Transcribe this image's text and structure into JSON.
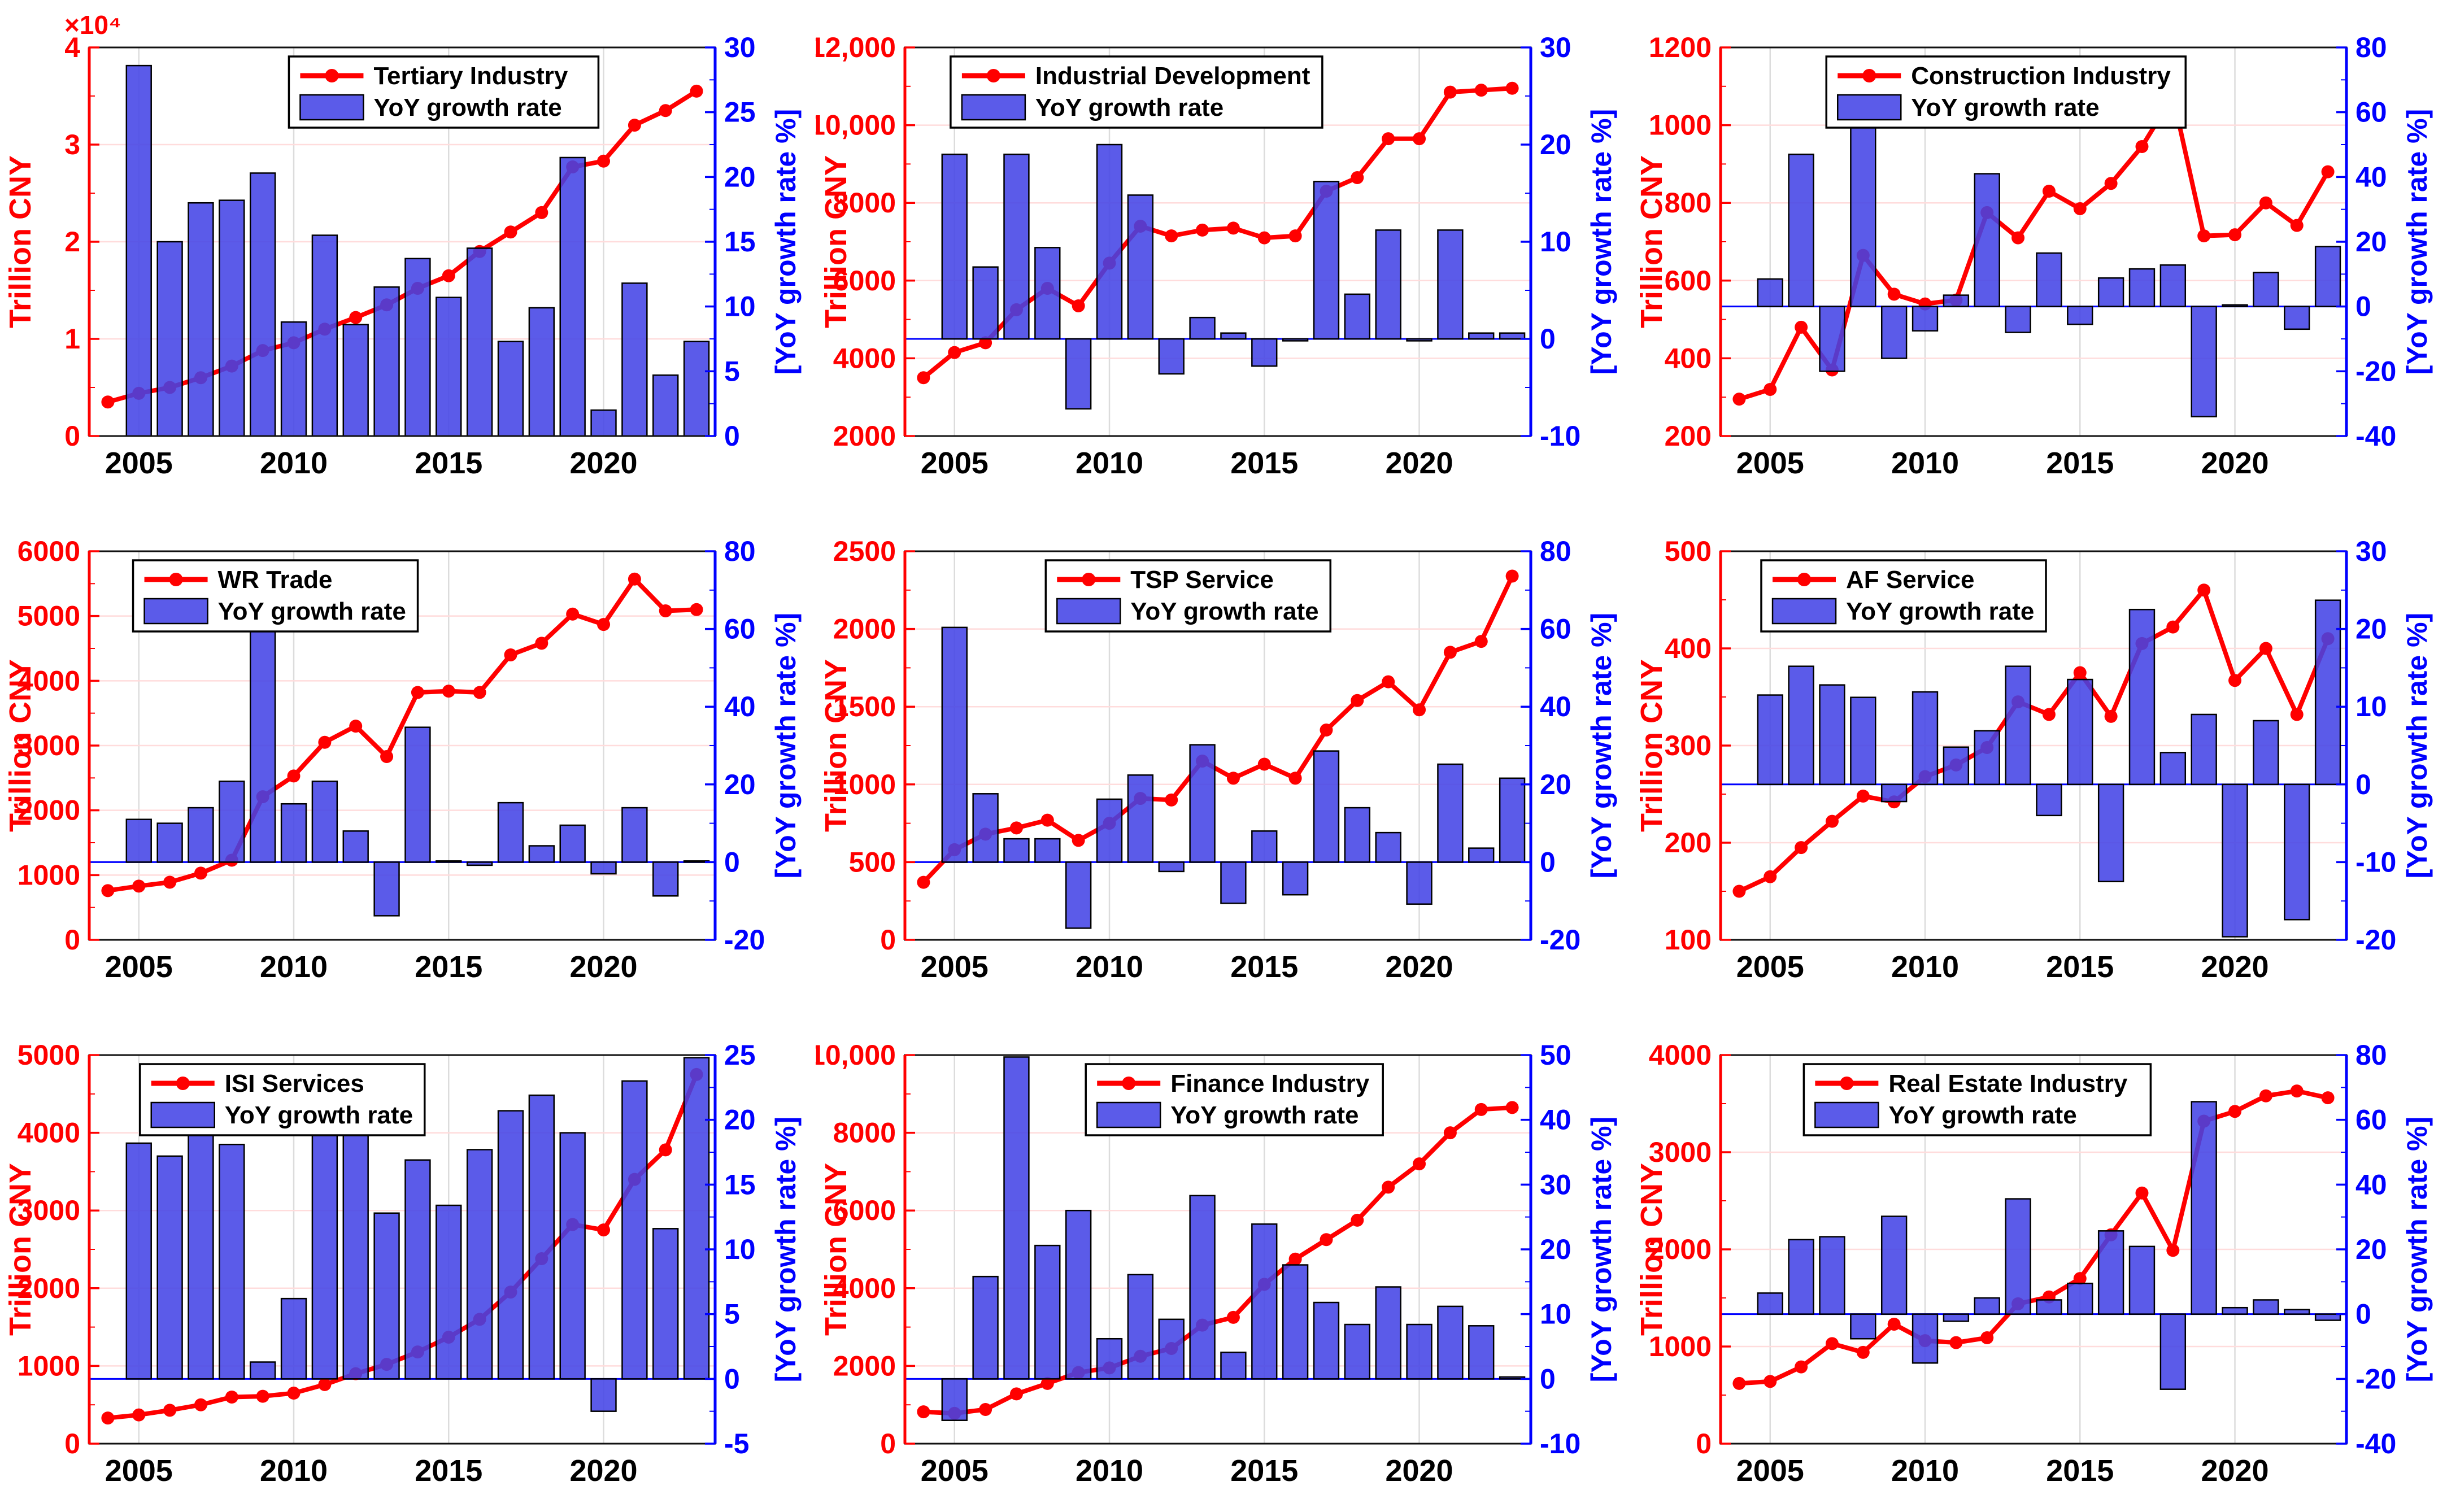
{
  "shared": {
    "left_axis_label": "Trillion CNY",
    "right_axis_label": "[YoY growth rate %]",
    "bar_label": "YoY growth rate",
    "x_ticks": [
      2005,
      2010,
      2015,
      2020
    ],
    "years_start": 2004,
    "years_end": 2023,
    "colors": {
      "line": "#ff0000",
      "marker": "#ff0000",
      "bar_fill": "#4343e6",
      "bar_edge": "#000000",
      "left_axis": "#ff0000",
      "right_axis": "#0000ff",
      "frame": "#111111",
      "grid_h": "#ffdcdc",
      "grid_v": "#dcdcdc",
      "x_label": "#000000",
      "legend_border": "#000000",
      "legend_bg": "#ffffff",
      "legend_text": "#000000"
    }
  },
  "chart_data": [
    {
      "type": "line+bar",
      "series_name": "Tertiary Industry",
      "bar_name": "YoY growth rate",
      "left_unit_multiplier": "×10⁴",
      "years": [
        2004,
        2005,
        2006,
        2007,
        2008,
        2009,
        2010,
        2011,
        2012,
        2013,
        2014,
        2015,
        2016,
        2017,
        2018,
        2019,
        2020,
        2021,
        2022,
        2023
      ],
      "line_trillion_cny": [
        0.35,
        0.44,
        0.5,
        0.6,
        0.72,
        0.88,
        0.96,
        1.1,
        1.22,
        1.35,
        1.52,
        1.65,
        1.9,
        2.1,
        2.3,
        2.77,
        2.83,
        3.2,
        3.35,
        3.55
      ],
      "bar_yoy_percent": [
        null,
        28.6,
        15.0,
        18.0,
        18.2,
        20.3,
        8.8,
        15.5,
        8.6,
        11.5,
        13.7,
        10.7,
        14.5,
        7.3,
        9.9,
        21.5,
        2.0,
        11.8,
        4.7,
        7.3
      ],
      "left_range": [
        0,
        4
      ],
      "left_ticks": [
        0,
        1,
        2,
        3,
        4
      ],
      "right_range": [
        0,
        30
      ],
      "right_ticks": [
        0,
        5,
        10,
        15,
        20,
        25,
        30
      ],
      "legend_x_frac": 0.319
    },
    {
      "type": "line+bar",
      "series_name": "Industrial Development",
      "bar_name": "YoY growth rate",
      "years": [
        2004,
        2005,
        2006,
        2007,
        2008,
        2009,
        2010,
        2011,
        2012,
        2013,
        2014,
        2015,
        2016,
        2017,
        2018,
        2019,
        2020,
        2021,
        2022,
        2023
      ],
      "line_trillion_cny": [
        3500,
        4150,
        4400,
        5250,
        5800,
        5350,
        6450,
        7400,
        7150,
        7300,
        7350,
        7100,
        7150,
        8300,
        8650,
        9650,
        9650,
        10850,
        10900,
        10950
      ],
      "bar_yoy_percent": [
        null,
        19.0,
        7.4,
        19.0,
        9.4,
        -7.2,
        20.0,
        14.8,
        -3.6,
        2.2,
        0.6,
        -2.8,
        -0.2,
        16.2,
        4.6,
        11.2,
        -0.2,
        11.2,
        0.6,
        0.6
      ],
      "left_range": [
        2000,
        12000
      ],
      "left_ticks": [
        2000,
        4000,
        6000,
        8000,
        10000,
        12000
      ],
      "right_range": [
        -10,
        30
      ],
      "right_ticks": [
        -10,
        0,
        10,
        20,
        30
      ],
      "legend_x_frac": 0.073
    },
    {
      "type": "line+bar",
      "series_name": "Construction Industry",
      "bar_name": "YoY growth rate",
      "years": [
        2004,
        2005,
        2006,
        2007,
        2008,
        2009,
        2010,
        2011,
        2012,
        2013,
        2014,
        2015,
        2016,
        2017,
        2018,
        2019,
        2020,
        2021,
        2022,
        2023
      ],
      "line_trillion_cny": [
        295,
        320,
        480,
        370,
        665,
        565,
        540,
        550,
        775,
        710,
        830,
        785,
        850,
        945,
        1075,
        715,
        718,
        800,
        742,
        880
      ],
      "bar_yoy_percent": [
        null,
        8.5,
        47,
        -20,
        60,
        -16,
        -7.5,
        3.5,
        41,
        -8,
        16.5,
        -5.5,
        8.8,
        11.6,
        12.8,
        -34,
        0.5,
        10.5,
        -7,
        18.5
      ],
      "left_range": [
        200,
        1200
      ],
      "left_ticks": [
        200,
        400,
        600,
        800,
        1000,
        1200
      ],
      "right_range": [
        -40,
        80
      ],
      "right_ticks": [
        -40,
        -20,
        0,
        20,
        40,
        60,
        80
      ],
      "legend_x_frac": 0.169
    },
    {
      "type": "line+bar",
      "series_name": "WR Trade",
      "bar_name": "YoY growth rate",
      "years": [
        2004,
        2005,
        2006,
        2007,
        2008,
        2009,
        2010,
        2011,
        2012,
        2013,
        2014,
        2015,
        2016,
        2017,
        2018,
        2019,
        2020,
        2021,
        2022,
        2023
      ],
      "line_trillion_cny": [
        760,
        830,
        890,
        1030,
        1230,
        2210,
        2530,
        3050,
        3300,
        2830,
        3820,
        3840,
        3820,
        4400,
        4580,
        5030,
        4870,
        5570,
        5080,
        5100
      ],
      "bar_yoy_percent": [
        null,
        11,
        10,
        14,
        20.8,
        62,
        15,
        20.8,
        8,
        -13.8,
        34.7,
        0.3,
        -0.8,
        15.3,
        4.2,
        9.5,
        -3,
        14,
        -8.7,
        0.3
      ],
      "left_range": [
        0,
        6000
      ],
      "left_ticks": [
        0,
        1000,
        2000,
        3000,
        4000,
        5000,
        6000
      ],
      "right_range": [
        -20,
        80
      ],
      "right_ticks": [
        -20,
        0,
        20,
        40,
        60,
        80
      ],
      "legend_x_frac": 0.07
    },
    {
      "type": "line+bar",
      "series_name": "TSP Service",
      "bar_name": "YoY growth rate",
      "years": [
        2004,
        2005,
        2006,
        2007,
        2008,
        2009,
        2010,
        2011,
        2012,
        2013,
        2014,
        2015,
        2016,
        2017,
        2018,
        2019,
        2020,
        2021,
        2022,
        2023
      ],
      "line_trillion_cny": [
        370,
        580,
        680,
        720,
        770,
        640,
        750,
        910,
        900,
        1150,
        1040,
        1130,
        1040,
        1350,
        1540,
        1660,
        1480,
        1850,
        1920,
        2340
      ],
      "bar_yoy_percent": [
        null,
        60.4,
        17.6,
        6,
        6,
        -17,
        16.2,
        22.4,
        -2.4,
        30.2,
        -10.6,
        8,
        -8.4,
        28.6,
        14,
        7.6,
        -10.8,
        25.2,
        3.6,
        21.6
      ],
      "left_range": [
        0,
        2500
      ],
      "left_ticks": [
        0,
        500,
        1000,
        1500,
        2000,
        2500
      ],
      "right_range": [
        -20,
        80
      ],
      "right_ticks": [
        -20,
        0,
        20,
        40,
        60,
        80
      ],
      "legend_x_frac": 0.225
    },
    {
      "type": "line+bar",
      "series_name": "AF Service",
      "bar_name": "YoY growth rate",
      "years": [
        2004,
        2005,
        2006,
        2007,
        2008,
        2009,
        2010,
        2011,
        2012,
        2013,
        2014,
        2015,
        2016,
        2017,
        2018,
        2019,
        2020,
        2021,
        2022,
        2023
      ],
      "line_trillion_cny": [
        150,
        165,
        195,
        222,
        248,
        242,
        268,
        280,
        298,
        345,
        332,
        375,
        330,
        405,
        422,
        460,
        367,
        400,
        332,
        410
      ],
      "bar_yoy_percent": [
        null,
        11.5,
        15.2,
        12.8,
        11.2,
        -2.2,
        11.9,
        4.8,
        6.9,
        15.2,
        -4,
        13.5,
        -12.5,
        22.5,
        4.1,
        9,
        -19.6,
        8.2,
        -17.4,
        23.7
      ],
      "left_range": [
        100,
        500
      ],
      "left_ticks": [
        100,
        200,
        300,
        400,
        500
      ],
      "right_range": [
        -20,
        30
      ],
      "right_ticks": [
        -20,
        -10,
        0,
        10,
        20,
        30
      ],
      "legend_x_frac": 0.065
    },
    {
      "type": "line+bar",
      "series_name": "ISI Services",
      "bar_name": "YoY growth rate",
      "years": [
        2004,
        2005,
        2006,
        2007,
        2008,
        2009,
        2010,
        2011,
        2012,
        2013,
        2014,
        2015,
        2016,
        2017,
        2018,
        2019,
        2020,
        2021,
        2022,
        2023
      ],
      "line_trillion_cny": [
        330,
        370,
        430,
        500,
        600,
        610,
        650,
        760,
        900,
        1020,
        1180,
        1370,
        1600,
        1950,
        2380,
        2820,
        2750,
        3400,
        3780,
        4750
      ],
      "bar_yoy_percent": [
        null,
        18.2,
        17.2,
        18.8,
        18.1,
        1.3,
        6.2,
        19.3,
        19.3,
        12.8,
        16.9,
        13.4,
        17.7,
        20.7,
        21.9,
        19.0,
        -2.5,
        23.0,
        11.6,
        24.8
      ],
      "left_range": [
        0,
        5000
      ],
      "left_ticks": [
        0,
        1000,
        2000,
        3000,
        4000,
        5000
      ],
      "right_range": [
        -5,
        25
      ],
      "right_ticks": [
        -5,
        0,
        5,
        10,
        15,
        20,
        25
      ],
      "legend_x_frac": 0.081
    },
    {
      "type": "line+bar",
      "series_name": "Finance Industry",
      "bar_name": "YoY growth rate",
      "years": [
        2004,
        2005,
        2006,
        2007,
        2008,
        2009,
        2010,
        2011,
        2012,
        2013,
        2014,
        2015,
        2016,
        2017,
        2018,
        2019,
        2020,
        2021,
        2022,
        2023
      ],
      "line_trillion_cny": [
        820,
        780,
        880,
        1280,
        1550,
        1830,
        1950,
        2250,
        2450,
        3050,
        3250,
        4100,
        4750,
        5250,
        5750,
        6600,
        7200,
        8000,
        8600,
        8650
      ],
      "bar_yoy_percent": [
        null,
        -6.4,
        15.8,
        49.7,
        20.6,
        26,
        6.2,
        16.1,
        9.2,
        28.3,
        4.1,
        23.9,
        17.6,
        11.8,
        8.4,
        14.2,
        8.4,
        11.2,
        8.2,
        0.3
      ],
      "left_range": [
        0,
        10000
      ],
      "left_ticks": [
        0,
        2000,
        4000,
        6000,
        8000,
        10000
      ],
      "right_range": [
        -10,
        50
      ],
      "right_ticks": [
        -10,
        0,
        10,
        20,
        30,
        40,
        50
      ],
      "legend_x_frac": 0.289
    },
    {
      "type": "line+bar",
      "series_name": "Real Estate Industry",
      "bar_name": "YoY growth rate",
      "years": [
        2004,
        2005,
        2006,
        2007,
        2008,
        2009,
        2010,
        2011,
        2012,
        2013,
        2014,
        2015,
        2016,
        2017,
        2018,
        2019,
        2020,
        2021,
        2022,
        2023
      ],
      "line_trillion_cny": [
        620,
        640,
        790,
        1030,
        940,
        1230,
        1060,
        1040,
        1090,
        1440,
        1510,
        1700,
        2150,
        2580,
        1990,
        3320,
        3420,
        3580,
        3630,
        3560
      ],
      "bar_yoy_percent": [
        null,
        6.5,
        23,
        23.9,
        -7.6,
        30.2,
        -15.1,
        -2.2,
        5,
        35.6,
        4.4,
        9.5,
        25.7,
        20.9,
        -23.2,
        65.6,
        2,
        4.4,
        1.4,
        -1.9
      ],
      "left_range": [
        0,
        4000
      ],
      "left_ticks": [
        0,
        1000,
        2000,
        3000,
        4000
      ],
      "right_range": [
        -40,
        80
      ],
      "right_ticks": [
        -40,
        -20,
        0,
        20,
        40,
        60,
        80
      ],
      "legend_x_frac": 0.133
    }
  ]
}
